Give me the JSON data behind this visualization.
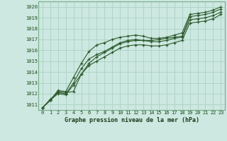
{
  "bg_color": "#cce8e0",
  "grid_color": "#b0d4c8",
  "line_color": "#2d5a2d",
  "title": "Graphe pression niveau de la mer (hPa)",
  "xlim": [
    -0.5,
    23.5
  ],
  "ylim": [
    1010.5,
    1020.5
  ],
  "yticks": [
    1011,
    1012,
    1013,
    1014,
    1015,
    1016,
    1017,
    1018,
    1019,
    1020
  ],
  "xticks": [
    0,
    1,
    2,
    3,
    4,
    5,
    6,
    7,
    8,
    9,
    10,
    11,
    12,
    13,
    14,
    15,
    16,
    17,
    18,
    19,
    20,
    21,
    22,
    23
  ],
  "series": [
    [
      1010.7,
      1011.4,
      1012.2,
      1012.1,
      1012.2,
      1013.8,
      1014.8,
      1015.4,
      1015.8,
      1016.2,
      1016.6,
      1016.8,
      1016.9,
      1016.9,
      1016.9,
      1017.0,
      1017.1,
      1017.2,
      1017.3,
      1019.1,
      1019.2,
      1019.3,
      1019.5,
      1019.8
    ],
    [
      1010.7,
      1011.4,
      1012.3,
      1012.2,
      1013.5,
      1014.8,
      1015.9,
      1016.5,
      1016.7,
      1017.0,
      1017.2,
      1017.3,
      1017.4,
      1017.3,
      1017.1,
      1017.1,
      1017.2,
      1017.4,
      1017.6,
      1019.3,
      1019.4,
      1019.5,
      1019.7,
      1020.0
    ],
    [
      1010.7,
      1011.5,
      1012.1,
      1012.0,
      1013.0,
      1014.3,
      1015.2,
      1015.6,
      1015.9,
      1016.3,
      1016.7,
      1016.9,
      1017.0,
      1016.9,
      1016.8,
      1016.8,
      1016.9,
      1017.1,
      1017.2,
      1018.8,
      1018.9,
      1019.0,
      1019.2,
      1019.5
    ],
    [
      1010.7,
      1011.4,
      1012.0,
      1011.9,
      1012.8,
      1013.8,
      1014.6,
      1015.0,
      1015.4,
      1015.8,
      1016.2,
      1016.4,
      1016.5,
      1016.5,
      1016.4,
      1016.4,
      1016.5,
      1016.7,
      1016.9,
      1018.5,
      1018.6,
      1018.7,
      1018.9,
      1019.3
    ]
  ]
}
